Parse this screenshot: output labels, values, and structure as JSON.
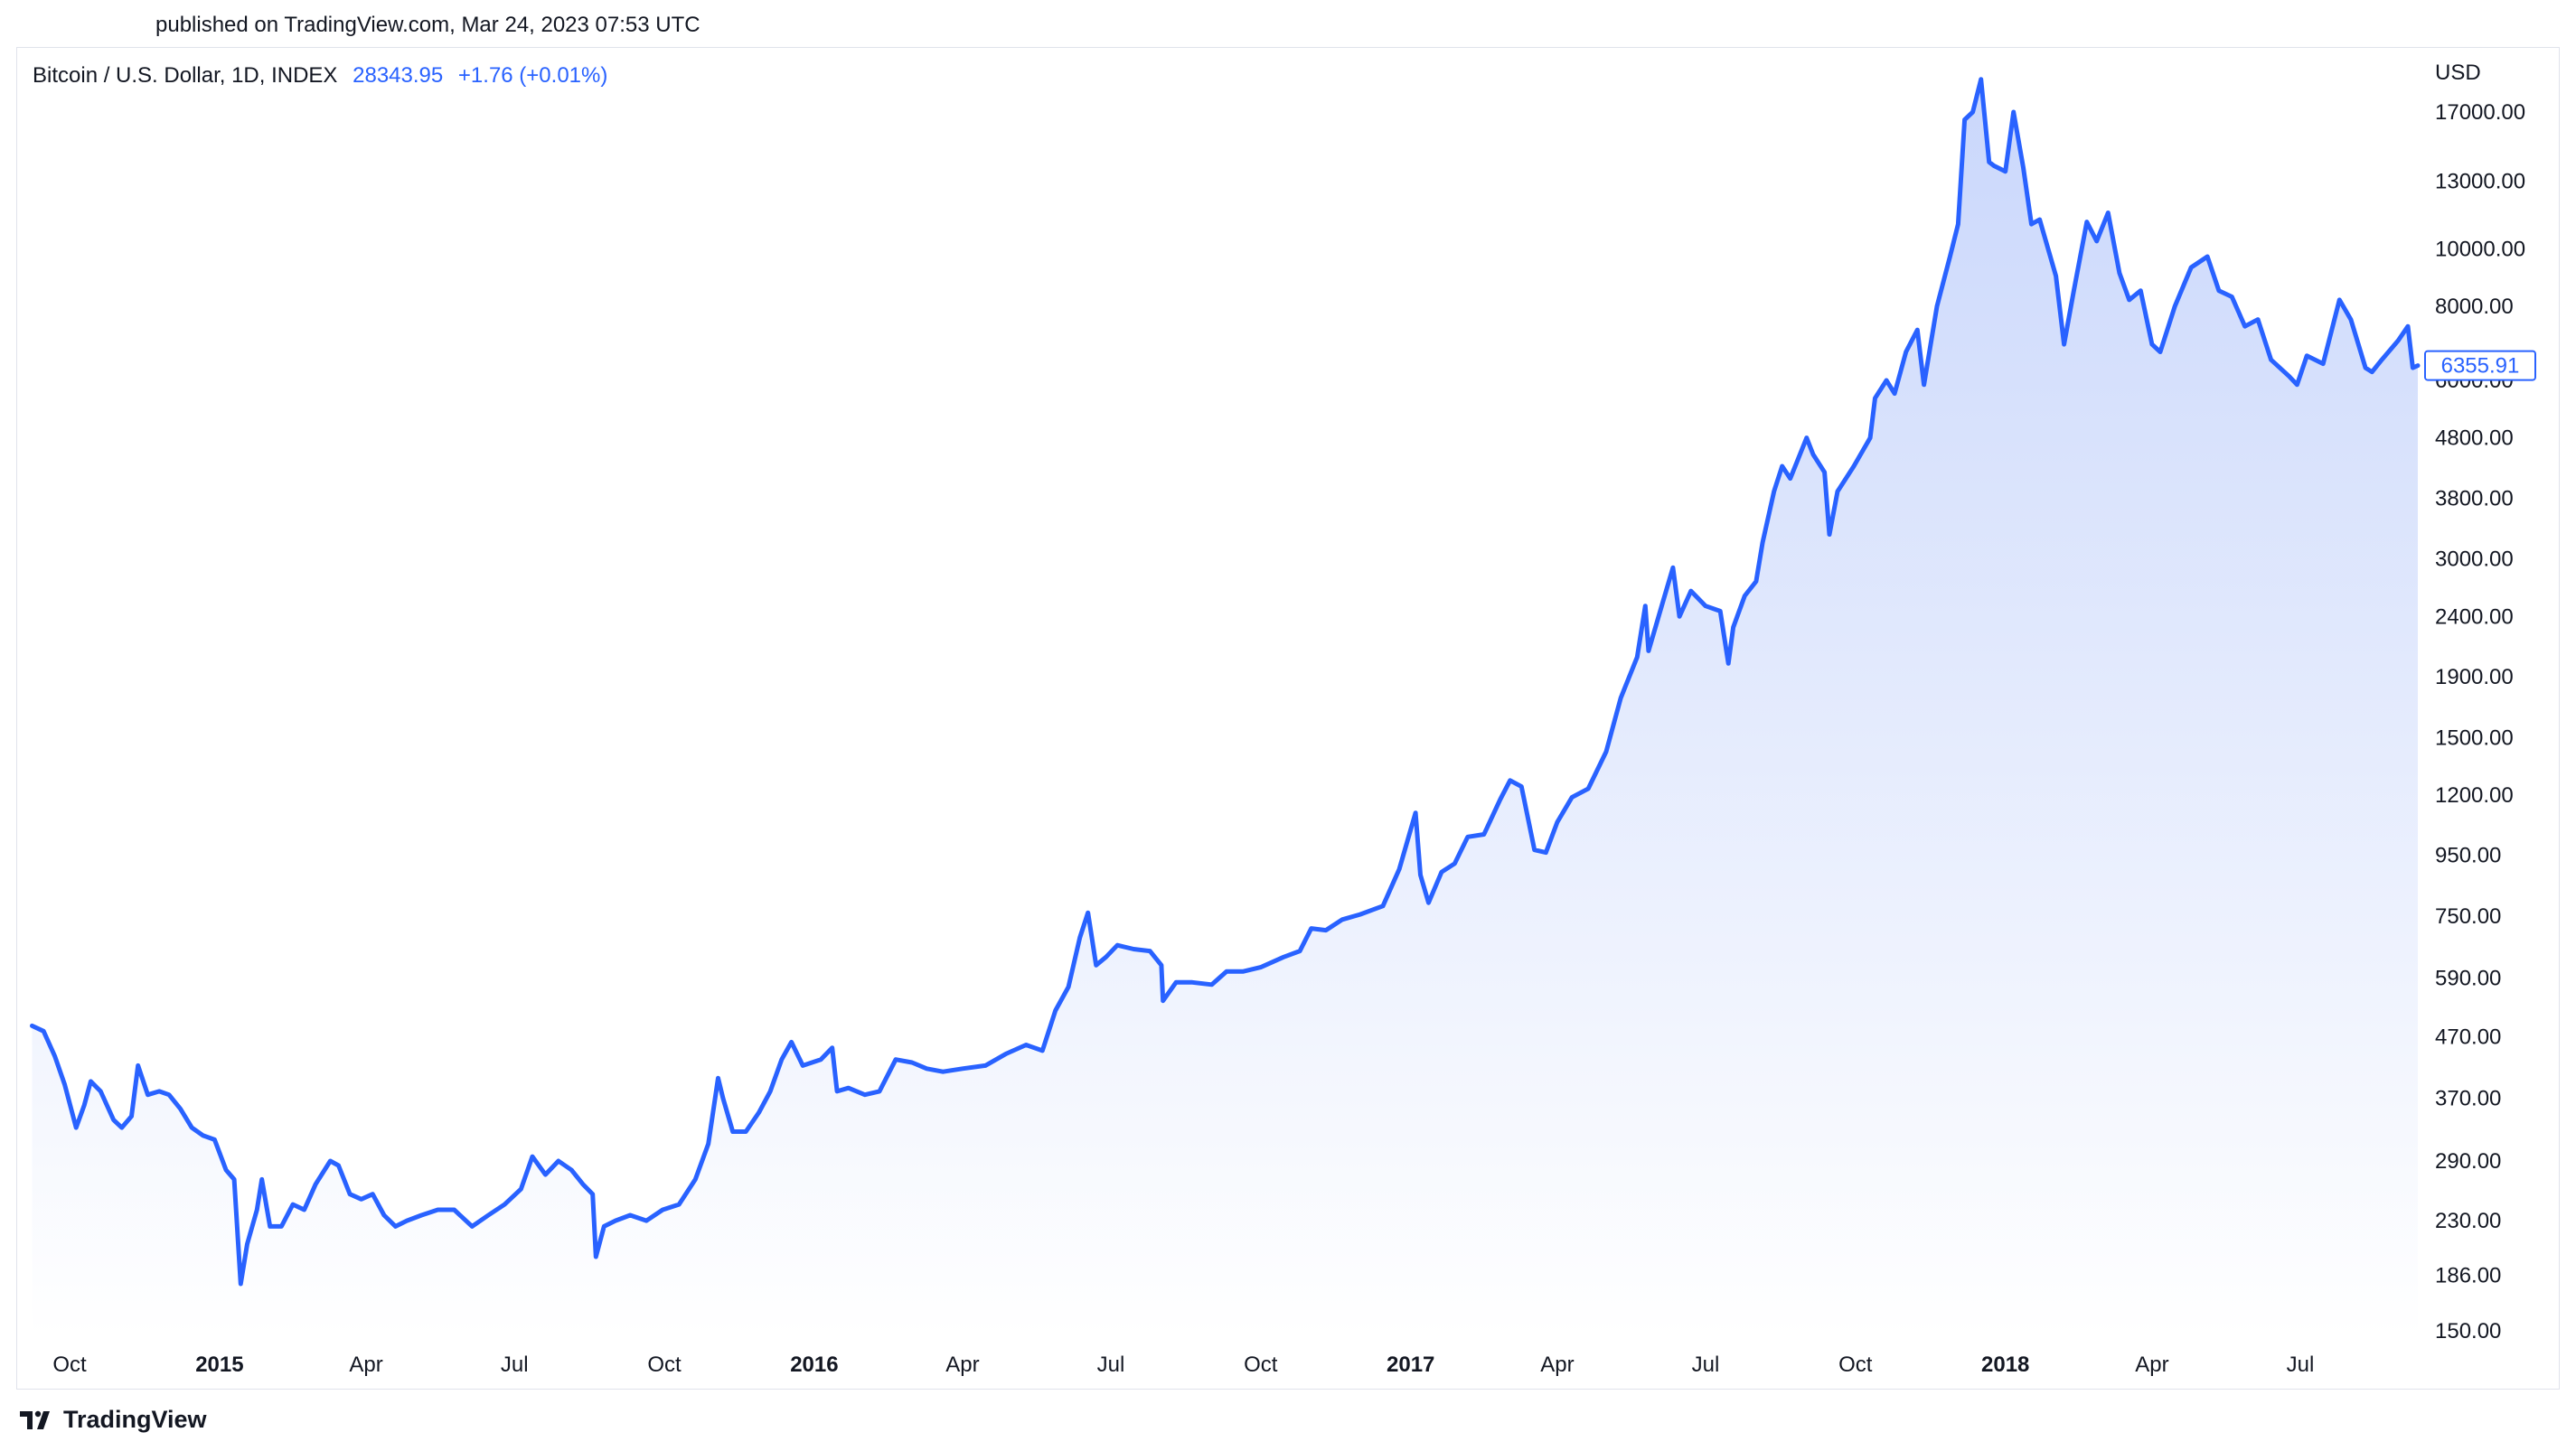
{
  "header": {
    "published": "published on TradingView.com, Mar 24, 2023 07:53 UTC"
  },
  "legend": {
    "symbol": "Bitcoin / U.S. Dollar, 1D, INDEX",
    "last": "28343.95",
    "change": "+1.76 (+0.01%)"
  },
  "brand": {
    "name": "TradingView",
    "icon": "tradingview-logo-icon"
  },
  "colors": {
    "line": "#2962ff",
    "fill_top": "#c7d5fb",
    "fill_bottom": "#ffffff",
    "text": "#131722"
  },
  "chart_data": {
    "type": "area",
    "scale": "log",
    "y_unit": "USD",
    "ylim": [
      150,
      19500
    ],
    "grid": false,
    "y_ticks": [
      17000,
      13000,
      10000,
      8000,
      6000,
      4800,
      3800,
      3000,
      2400,
      1900,
      1500,
      1200,
      950,
      750,
      590,
      470,
      370,
      290,
      230,
      186,
      150
    ],
    "y_tick_labels": [
      "17000.00",
      "13000.00",
      "10000.00",
      "8000.00",
      "6000.00",
      "4800.00",
      "3800.00",
      "3000.00",
      "2400.00",
      "1900.00",
      "1500.00",
      "1200.00",
      "950.00",
      "750.00",
      "590.00",
      "470.00",
      "370.00",
      "290.00",
      "230.00",
      "186.00",
      "150.00"
    ],
    "x_ticks": [
      {
        "date": "2014-10-01",
        "label": "Oct",
        "bold": false
      },
      {
        "date": "2015-01-01",
        "label": "2015",
        "bold": true
      },
      {
        "date": "2015-04-01",
        "label": "Apr",
        "bold": false
      },
      {
        "date": "2015-07-01",
        "label": "Jul",
        "bold": false
      },
      {
        "date": "2015-10-01",
        "label": "Oct",
        "bold": false
      },
      {
        "date": "2016-01-01",
        "label": "2016",
        "bold": true
      },
      {
        "date": "2016-04-01",
        "label": "Apr",
        "bold": false
      },
      {
        "date": "2016-07-01",
        "label": "Jul",
        "bold": false
      },
      {
        "date": "2016-10-01",
        "label": "Oct",
        "bold": false
      },
      {
        "date": "2017-01-01",
        "label": "2017",
        "bold": true
      },
      {
        "date": "2017-04-01",
        "label": "Apr",
        "bold": false
      },
      {
        "date": "2017-07-01",
        "label": "Jul",
        "bold": false
      },
      {
        "date": "2017-10-01",
        "label": "Oct",
        "bold": false
      },
      {
        "date": "2018-01-01",
        "label": "2018",
        "bold": true
      },
      {
        "date": "2018-04-01",
        "label": "Apr",
        "bold": false
      },
      {
        "date": "2018-07-01",
        "label": "Jul",
        "bold": false
      }
    ],
    "last_value_label": "6355.91",
    "series": [
      {
        "points": [
          [
            "2014-09-08",
            490
          ],
          [
            "2014-09-15",
            480
          ],
          [
            "2014-09-22",
            435
          ],
          [
            "2014-09-28",
            390
          ],
          [
            "2014-10-05",
            330
          ],
          [
            "2014-10-10",
            360
          ],
          [
            "2014-10-14",
            395
          ],
          [
            "2014-10-20",
            380
          ],
          [
            "2014-10-28",
            340
          ],
          [
            "2014-11-02",
            330
          ],
          [
            "2014-11-08",
            345
          ],
          [
            "2014-11-12",
            420
          ],
          [
            "2014-11-18",
            375
          ],
          [
            "2014-11-25",
            380
          ],
          [
            "2014-12-01",
            375
          ],
          [
            "2014-12-08",
            355
          ],
          [
            "2014-12-15",
            330
          ],
          [
            "2014-12-22",
            320
          ],
          [
            "2014-12-29",
            315
          ],
          [
            "2015-01-05",
            280
          ],
          [
            "2015-01-10",
            270
          ],
          [
            "2015-01-14",
            180
          ],
          [
            "2015-01-18",
            210
          ],
          [
            "2015-01-24",
            240
          ],
          [
            "2015-01-27",
            270
          ],
          [
            "2015-02-01",
            225
          ],
          [
            "2015-02-08",
            225
          ],
          [
            "2015-02-15",
            245
          ],
          [
            "2015-02-22",
            240
          ],
          [
            "2015-03-01",
            265
          ],
          [
            "2015-03-10",
            290
          ],
          [
            "2015-03-15",
            285
          ],
          [
            "2015-03-22",
            255
          ],
          [
            "2015-03-29",
            250
          ],
          [
            "2015-04-05",
            255
          ],
          [
            "2015-04-12",
            235
          ],
          [
            "2015-04-19",
            225
          ],
          [
            "2015-04-26",
            230
          ],
          [
            "2015-05-05",
            235
          ],
          [
            "2015-05-15",
            240
          ],
          [
            "2015-05-25",
            240
          ],
          [
            "2015-06-05",
            225
          ],
          [
            "2015-06-15",
            235
          ],
          [
            "2015-06-25",
            245
          ],
          [
            "2015-07-05",
            260
          ],
          [
            "2015-07-12",
            295
          ],
          [
            "2015-07-20",
            275
          ],
          [
            "2015-07-28",
            290
          ],
          [
            "2015-08-05",
            280
          ],
          [
            "2015-08-12",
            265
          ],
          [
            "2015-08-18",
            255
          ],
          [
            "2015-08-20",
            200
          ],
          [
            "2015-08-25",
            225
          ],
          [
            "2015-09-01",
            230
          ],
          [
            "2015-09-10",
            235
          ],
          [
            "2015-09-20",
            230
          ],
          [
            "2015-09-30",
            240
          ],
          [
            "2015-10-10",
            245
          ],
          [
            "2015-10-20",
            270
          ],
          [
            "2015-10-28",
            310
          ],
          [
            "2015-11-03",
            400
          ],
          [
            "2015-11-06",
            370
          ],
          [
            "2015-11-12",
            325
          ],
          [
            "2015-11-20",
            325
          ],
          [
            "2015-11-28",
            350
          ],
          [
            "2015-12-05",
            380
          ],
          [
            "2015-12-12",
            430
          ],
          [
            "2015-12-18",
            460
          ],
          [
            "2015-12-25",
            420
          ],
          [
            "2016-01-05",
            430
          ],
          [
            "2016-01-12",
            450
          ],
          [
            "2016-01-15",
            380
          ],
          [
            "2016-01-22",
            385
          ],
          [
            "2016-02-01",
            375
          ],
          [
            "2016-02-10",
            380
          ],
          [
            "2016-02-20",
            430
          ],
          [
            "2016-03-01",
            425
          ],
          [
            "2016-03-10",
            415
          ],
          [
            "2016-03-20",
            410
          ],
          [
            "2016-04-01",
            415
          ],
          [
            "2016-04-15",
            420
          ],
          [
            "2016-04-28",
            440
          ],
          [
            "2016-05-10",
            455
          ],
          [
            "2016-05-20",
            445
          ],
          [
            "2016-05-28",
            520
          ],
          [
            "2016-06-05",
            570
          ],
          [
            "2016-06-12",
            690
          ],
          [
            "2016-06-17",
            760
          ],
          [
            "2016-06-22",
            620
          ],
          [
            "2016-06-28",
            640
          ],
          [
            "2016-07-05",
            670
          ],
          [
            "2016-07-15",
            660
          ],
          [
            "2016-07-25",
            655
          ],
          [
            "2016-08-01",
            620
          ],
          [
            "2016-08-02",
            540
          ],
          [
            "2016-08-10",
            580
          ],
          [
            "2016-08-20",
            580
          ],
          [
            "2016-09-01",
            575
          ],
          [
            "2016-09-10",
            605
          ],
          [
            "2016-09-20",
            605
          ],
          [
            "2016-10-01",
            615
          ],
          [
            "2016-10-15",
            640
          ],
          [
            "2016-10-25",
            655
          ],
          [
            "2016-11-01",
            715
          ],
          [
            "2016-11-10",
            710
          ],
          [
            "2016-11-20",
            740
          ],
          [
            "2016-12-01",
            755
          ],
          [
            "2016-12-15",
            780
          ],
          [
            "2016-12-25",
            900
          ],
          [
            "2017-01-04",
            1120
          ],
          [
            "2017-01-07",
            880
          ],
          [
            "2017-01-12",
            790
          ],
          [
            "2017-01-20",
            890
          ],
          [
            "2017-01-28",
            920
          ],
          [
            "2017-02-05",
            1020
          ],
          [
            "2017-02-15",
            1030
          ],
          [
            "2017-02-25",
            1180
          ],
          [
            "2017-03-03",
            1270
          ],
          [
            "2017-03-10",
            1240
          ],
          [
            "2017-03-18",
            970
          ],
          [
            "2017-03-25",
            960
          ],
          [
            "2017-04-01",
            1080
          ],
          [
            "2017-04-10",
            1190
          ],
          [
            "2017-04-20",
            1230
          ],
          [
            "2017-05-01",
            1420
          ],
          [
            "2017-05-10",
            1750
          ],
          [
            "2017-05-20",
            2050
          ],
          [
            "2017-05-25",
            2500
          ],
          [
            "2017-05-27",
            2100
          ],
          [
            "2017-06-05",
            2550
          ],
          [
            "2017-06-11",
            2900
          ],
          [
            "2017-06-15",
            2400
          ],
          [
            "2017-06-22",
            2650
          ],
          [
            "2017-07-01",
            2500
          ],
          [
            "2017-07-10",
            2450
          ],
          [
            "2017-07-15",
            2000
          ],
          [
            "2017-07-18",
            2300
          ],
          [
            "2017-07-25",
            2600
          ],
          [
            "2017-08-01",
            2750
          ],
          [
            "2017-08-05",
            3200
          ],
          [
            "2017-08-12",
            3900
          ],
          [
            "2017-08-17",
            4300
          ],
          [
            "2017-08-22",
            4100
          ],
          [
            "2017-09-01",
            4800
          ],
          [
            "2017-09-05",
            4500
          ],
          [
            "2017-09-12",
            4200
          ],
          [
            "2017-09-15",
            3300
          ],
          [
            "2017-09-20",
            3900
          ],
          [
            "2017-09-30",
            4300
          ],
          [
            "2017-10-10",
            4800
          ],
          [
            "2017-10-13",
            5600
          ],
          [
            "2017-10-20",
            6000
          ],
          [
            "2017-10-25",
            5700
          ],
          [
            "2017-11-01",
            6700
          ],
          [
            "2017-11-08",
            7300
          ],
          [
            "2017-11-12",
            5900
          ],
          [
            "2017-11-20",
            8000
          ],
          [
            "2017-11-28",
            9700
          ],
          [
            "2017-12-03",
            11000
          ],
          [
            "2017-12-07",
            16500
          ],
          [
            "2017-12-12",
            17000
          ],
          [
            "2017-12-17",
            19300
          ],
          [
            "2017-12-22",
            14000
          ],
          [
            "2017-12-25",
            13800
          ],
          [
            "2018-01-01",
            13500
          ],
          [
            "2018-01-06",
            17000
          ],
          [
            "2018-01-12",
            13700
          ],
          [
            "2018-01-17",
            11000
          ],
          [
            "2018-01-22",
            11200
          ],
          [
            "2018-02-01",
            9000
          ],
          [
            "2018-02-06",
            6900
          ],
          [
            "2018-02-12",
            8500
          ],
          [
            "2018-02-20",
            11100
          ],
          [
            "2018-02-26",
            10300
          ],
          [
            "2018-03-05",
            11500
          ],
          [
            "2018-03-12",
            9100
          ],
          [
            "2018-03-18",
            8200
          ],
          [
            "2018-03-25",
            8500
          ],
          [
            "2018-04-01",
            6900
          ],
          [
            "2018-04-06",
            6700
          ],
          [
            "2018-04-15",
            8000
          ],
          [
            "2018-04-25",
            9300
          ],
          [
            "2018-05-05",
            9700
          ],
          [
            "2018-05-12",
            8500
          ],
          [
            "2018-05-20",
            8300
          ],
          [
            "2018-05-28",
            7400
          ],
          [
            "2018-06-05",
            7600
          ],
          [
            "2018-06-13",
            6500
          ],
          [
            "2018-06-24",
            6100
          ],
          [
            "2018-06-29",
            5900
          ],
          [
            "2018-07-05",
            6600
          ],
          [
            "2018-07-15",
            6400
          ],
          [
            "2018-07-25",
            8200
          ],
          [
            "2018-08-01",
            7600
          ],
          [
            "2018-08-10",
            6300
          ],
          [
            "2018-08-14",
            6200
          ],
          [
            "2018-08-20",
            6500
          ],
          [
            "2018-08-30",
            7000
          ],
          [
            "2018-09-05",
            7400
          ],
          [
            "2018-09-08",
            6300
          ],
          [
            "2018-09-12",
            6356
          ]
        ]
      }
    ]
  }
}
